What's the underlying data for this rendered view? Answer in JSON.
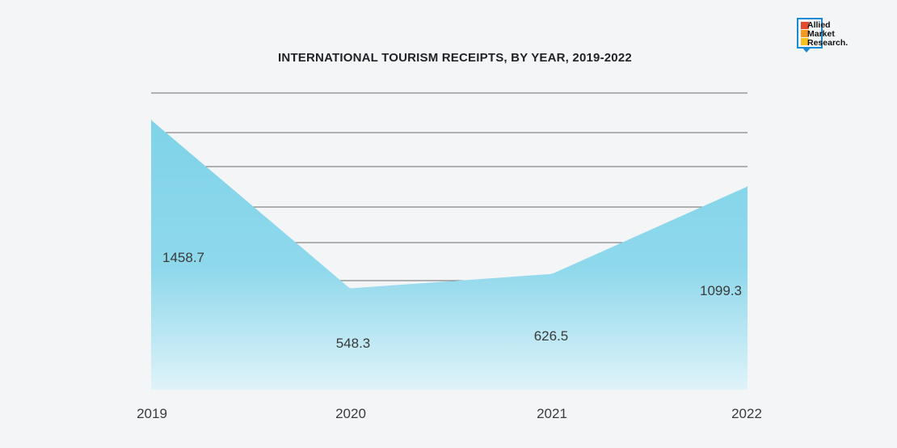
{
  "colors": {
    "area_top": "#7fd3e8",
    "area_bottom": "#dff3f9",
    "grid": "#6b6b6b",
    "text": "#3a3a3a",
    "logo_blue": "#1a8ad4",
    "logo_red": "#e34b2f",
    "logo_orange": "#f29a1f",
    "logo_yellow": "#f7c21e"
  },
  "logo": {
    "line1": "Allied",
    "line2": "Market",
    "line3": "Research."
  },
  "chart_data": {
    "type": "area",
    "title": "INTERNATIONAL TOURISM RECEIPTS, BY YEAR, 2019-2022",
    "categories": [
      "2019",
      "2020",
      "2021",
      "2022"
    ],
    "series": [
      {
        "name": "International Tourism Receipts",
        "values": [
          1458.7,
          548.3,
          626.5,
          1099.3
        ],
        "labels": [
          "1458.7",
          "548.3",
          "626.5",
          "1099.3"
        ]
      }
    ],
    "xlabel": "",
    "ylabel": "",
    "ylim": [
      0,
      1600
    ],
    "grid": true,
    "legend": "none"
  }
}
